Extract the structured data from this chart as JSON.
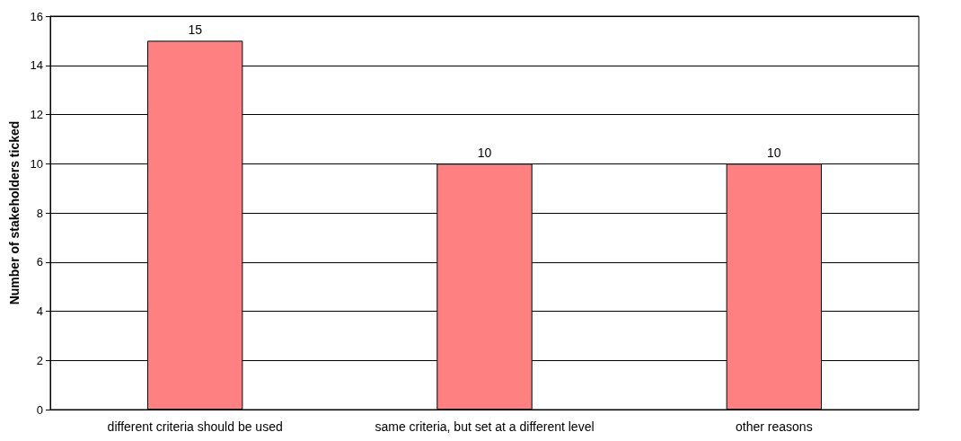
{
  "chart_data": {
    "type": "bar",
    "categories": [
      "different criteria should be used",
      "same criteria, but set at a different level",
      "other reasons"
    ],
    "values": [
      15,
      10,
      10
    ],
    "color": "#ff8080",
    "ylabel": "Number of stakeholders ticked",
    "ylim": [
      0,
      16
    ],
    "yticks": [
      0,
      2,
      4,
      6,
      8,
      10,
      12,
      14,
      16
    ],
    "grid": "y",
    "data_labels": true
  }
}
